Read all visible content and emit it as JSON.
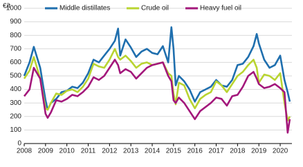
{
  "chart_data": {
    "type": "line",
    "y_label": "€/t",
    "x": [
      2008.0,
      2008.25,
      2008.45,
      2008.75,
      2009.0,
      2009.1,
      2009.25,
      2009.5,
      2009.75,
      2010.0,
      2010.25,
      2010.5,
      2010.75,
      2011.0,
      2011.25,
      2011.5,
      2011.75,
      2012.0,
      2012.25,
      2012.4,
      2012.5,
      2012.75,
      2013.0,
      2013.25,
      2013.5,
      2013.75,
      2014.0,
      2014.25,
      2014.5,
      2014.75,
      2014.9,
      2015.0,
      2015.1,
      2015.25,
      2015.5,
      2015.75,
      2016.0,
      2016.25,
      2016.5,
      2016.75,
      2017.0,
      2017.25,
      2017.5,
      2017.75,
      2018.0,
      2018.25,
      2018.5,
      2018.75,
      2018.9,
      2019.0,
      2019.25,
      2019.5,
      2019.75,
      2020.0,
      2020.2,
      2020.35,
      2020.45
    ],
    "series": [
      {
        "name": "Middle distillates",
        "color": "#1f6fae",
        "values": [
          500,
          600,
          715,
          560,
          320,
          250,
          300,
          330,
          380,
          390,
          420,
          410,
          450,
          520,
          620,
          600,
          650,
          700,
          760,
          850,
          650,
          770,
          710,
          640,
          680,
          700,
          670,
          660,
          720,
          600,
          860,
          700,
          430,
          500,
          460,
          400,
          310,
          380,
          400,
          420,
          470,
          430,
          420,
          470,
          580,
          590,
          640,
          720,
          810,
          740,
          620,
          560,
          580,
          650,
          470,
          380,
          310
        ]
      },
      {
        "name": "Crude oil",
        "color": "#b9d431",
        "values": [
          480,
          540,
          640,
          480,
          260,
          250,
          300,
          370,
          360,
          390,
          400,
          380,
          420,
          480,
          590,
          570,
          560,
          620,
          700,
          640,
          620,
          650,
          610,
          560,
          590,
          600,
          580,
          590,
          600,
          520,
          500,
          370,
          290,
          450,
          430,
          330,
          260,
          330,
          360,
          380,
          460,
          430,
          380,
          440,
          500,
          530,
          580,
          620,
          560,
          450,
          510,
          500,
          470,
          520,
          300,
          170,
          200
        ]
      },
      {
        "name": "Heavy fuel oil",
        "color": "#a3177b",
        "values": [
          350,
          400,
          560,
          480,
          220,
          190,
          230,
          320,
          310,
          330,
          360,
          350,
          380,
          420,
          490,
          470,
          500,
          560,
          620,
          580,
          520,
          550,
          530,
          480,
          520,
          560,
          580,
          590,
          600,
          500,
          460,
          320,
          300,
          340,
          300,
          240,
          180,
          240,
          270,
          300,
          340,
          330,
          280,
          350,
          360,
          420,
          500,
          530,
          480,
          440,
          410,
          420,
          440,
          410,
          380,
          80,
          180
        ]
      }
    ],
    "xlim": [
      2008,
      2020.55
    ],
    "xticks": [
      2008,
      2009,
      2010,
      2011,
      2012,
      2013,
      2014,
      2015,
      2016,
      2017,
      2018,
      2019,
      2020
    ],
    "ylim": [
      0,
      1000
    ],
    "yticks": [
      0,
      100,
      200,
      300,
      400,
      500,
      600,
      700,
      800,
      900,
      1000
    ],
    "grid": true
  }
}
